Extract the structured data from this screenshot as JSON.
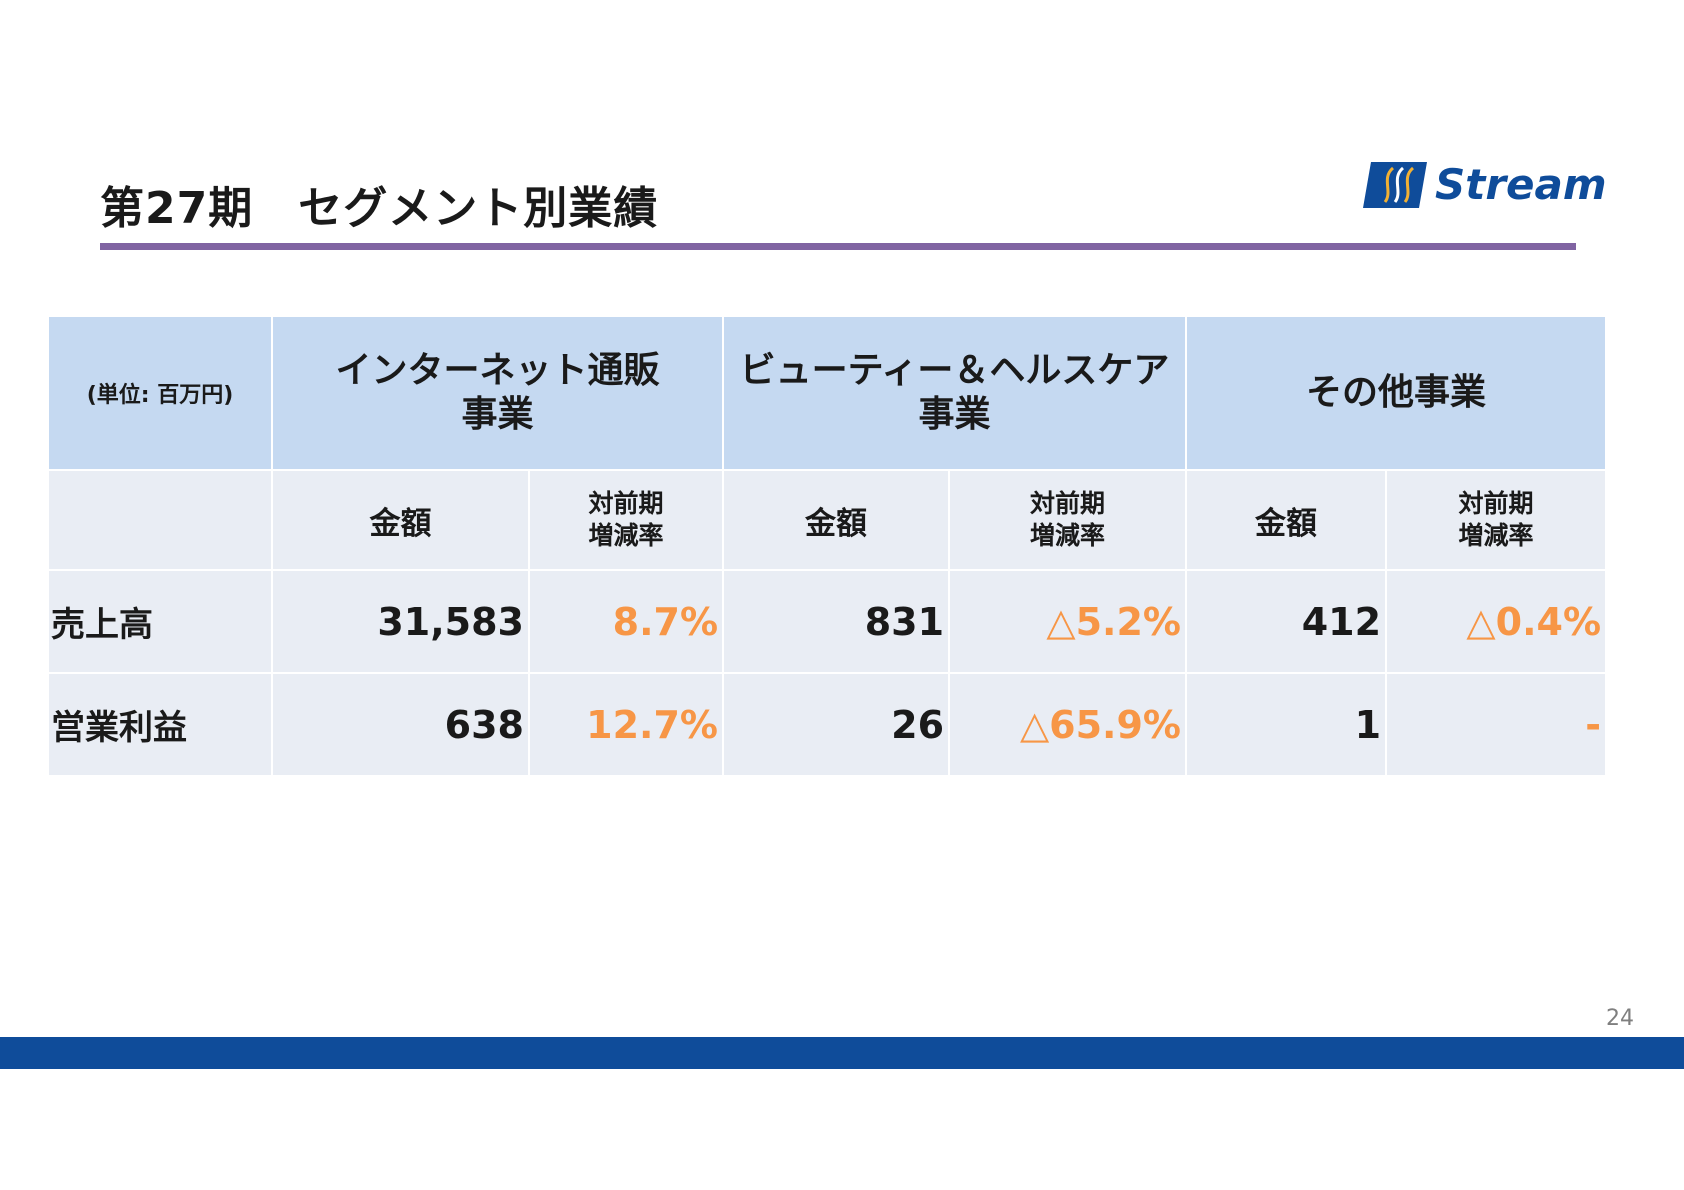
{
  "slide": {
    "title": "第27期　セグメント別業績",
    "page_number": "24"
  },
  "logo": {
    "text": "Stream",
    "colors": {
      "brand_blue": "#0f4c9a",
      "accent_gold": "#f2b134"
    }
  },
  "colors": {
    "title_rule": "#8064a2",
    "header_bg": "#c5d9f1",
    "cell_bg": "#e9edf4",
    "rate_text": "#f79646",
    "footer_bar": "#0f4c9a"
  },
  "table": {
    "unit_label": "(単位: 百万円)",
    "segments": [
      {
        "name_line1": "インターネット通販",
        "name_line2": "事業"
      },
      {
        "name_line1": "ビューティー＆ヘルスケア",
        "name_line2": "事業"
      },
      {
        "name_line1": "その他事業",
        "name_line2": ""
      }
    ],
    "subheaders": {
      "amount": "金額",
      "rate_line1": "対前期",
      "rate_line2": "増減率"
    },
    "rows": [
      {
        "label": "売上高",
        "cells": [
          {
            "amount": "31,583",
            "rate": "8.7%"
          },
          {
            "amount": "831",
            "rate": "△5.2%"
          },
          {
            "amount": "412",
            "rate": "△0.4%"
          }
        ]
      },
      {
        "label": "営業利益",
        "cells": [
          {
            "amount": "638",
            "rate": "12.7%"
          },
          {
            "amount": "26",
            "rate": "△65.9%"
          },
          {
            "amount": "1",
            "rate": "-"
          }
        ]
      }
    ]
  }
}
